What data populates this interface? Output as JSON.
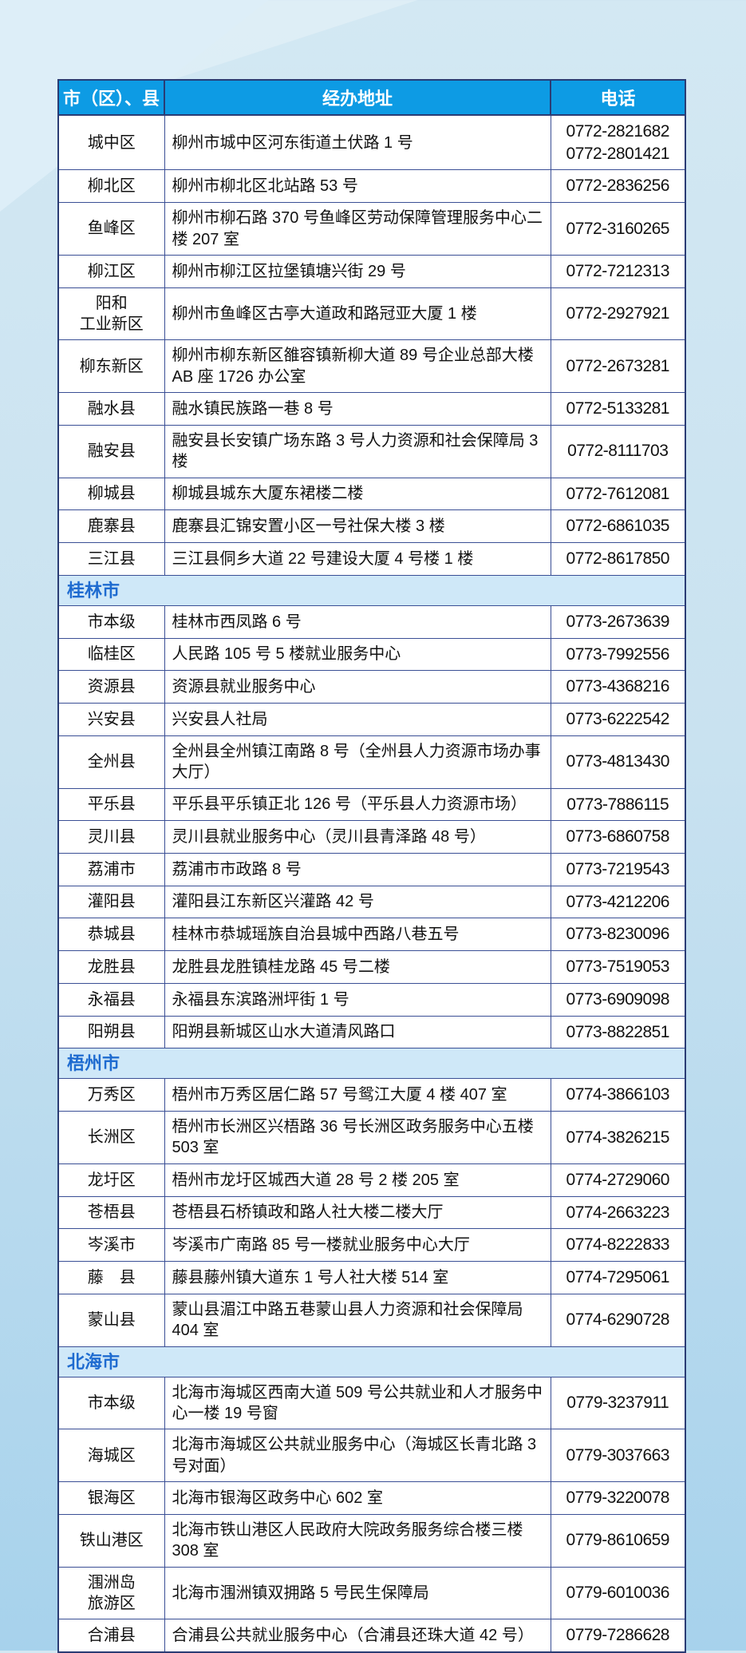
{
  "theme": {
    "bg-top": "#d3e8f3",
    "bg-bottom": "#a7d2ec",
    "header-bg": "#0d9be4",
    "header-text": "#ffffff",
    "section-bg": "#cfe8f8",
    "section-text": "#1e6bd0",
    "border-outer": "#2a3c74",
    "border-inner": "#3a4f95"
  },
  "table": {
    "columns": [
      "市（区）、县",
      "经办地址",
      "电话"
    ],
    "sections": [
      {
        "city": "",
        "rows": [
          {
            "region": "城中区",
            "address": "柳州市城中区河东街道土伏路 1 号",
            "phone": "0772-2821682\n0772-2801421"
          },
          {
            "region": "柳北区",
            "address": "柳州市柳北区北站路 53 号",
            "phone": "0772-2836256"
          },
          {
            "region": "鱼峰区",
            "address": "柳州市柳石路 370 号鱼峰区劳动保障管理服务中心二楼 207 室",
            "phone": "0772-3160265"
          },
          {
            "region": "柳江区",
            "address": "柳州市柳江区拉堡镇塘兴街 29 号",
            "phone": "0772-7212313"
          },
          {
            "region": "阳和\n工业新区",
            "address": "柳州市鱼峰区古亭大道政和路冠亚大厦 1 楼",
            "phone": "0772-2927921"
          },
          {
            "region": "柳东新区",
            "address": "柳州市柳东新区雒容镇新柳大道 89 号企业总部大楼 AB 座 1726 办公室",
            "phone": "0772-2673281"
          },
          {
            "region": "融水县",
            "address": "融水镇民族路一巷 8 号",
            "phone": "0772-5133281"
          },
          {
            "region": "融安县",
            "address": "融安县长安镇广场东路 3 号人力资源和社会保障局 3 楼",
            "phone": "0772-8111703"
          },
          {
            "region": "柳城县",
            "address": "柳城县城东大厦东裙楼二楼",
            "phone": "0772-7612081"
          },
          {
            "region": "鹿寨县",
            "address": "鹿寨县汇锦安置小区一号社保大楼 3 楼",
            "phone": "0772-6861035"
          },
          {
            "region": "三江县",
            "address": "三江县侗乡大道 22 号建设大厦 4 号楼 1 楼",
            "phone": "0772-8617850"
          }
        ]
      },
      {
        "city": "桂林市",
        "rows": [
          {
            "region": "市本级",
            "address": "桂林市西凤路 6 号",
            "phone": "0773-2673639"
          },
          {
            "region": "临桂区",
            "address": "人民路 105 号 5 楼就业服务中心",
            "phone": "0773-7992556"
          },
          {
            "region": "资源县",
            "address": "资源县就业服务中心",
            "phone": "0773-4368216"
          },
          {
            "region": "兴安县",
            "address": "兴安县人社局",
            "phone": "0773-6222542"
          },
          {
            "region": "全州县",
            "address": "全州县全州镇江南路 8 号（全州县人力资源市场办事大厅）",
            "phone": "0773-4813430"
          },
          {
            "region": "平乐县",
            "address": "平乐县平乐镇正北 126 号（平乐县人力资源市场）",
            "phone": "0773-7886115"
          },
          {
            "region": "灵川县",
            "address": "灵川县就业服务中心（灵川县青泽路 48 号）",
            "phone": "0773-6860758"
          },
          {
            "region": "荔浦市",
            "address": "荔浦市市政路 8 号",
            "phone": "0773-7219543"
          },
          {
            "region": "灌阳县",
            "address": "灌阳县江东新区兴灌路 42 号",
            "phone": "0773-4212206"
          },
          {
            "region": "恭城县",
            "address": "桂林市恭城瑶族自治县城中西路八巷五号",
            "phone": "0773-8230096"
          },
          {
            "region": "龙胜县",
            "address": "龙胜县龙胜镇桂龙路 45 号二楼",
            "phone": "0773-7519053"
          },
          {
            "region": "永福县",
            "address": "永福县东滨路洲坪街 1 号",
            "phone": "0773-6909098"
          },
          {
            "region": "阳朔县",
            "address": "阳朔县新城区山水大道清风路口",
            "phone": "0773-8822851"
          }
        ]
      },
      {
        "city": "梧州市",
        "rows": [
          {
            "region": "万秀区",
            "address": "梧州市万秀区居仁路 57 号鸳江大厦 4 楼 407 室",
            "phone": "0774-3866103"
          },
          {
            "region": "长洲区",
            "address": "梧州市长洲区兴梧路 36 号长洲区政务服务中心五楼 503 室",
            "phone": "0774-3826215"
          },
          {
            "region": "龙圩区",
            "address": "梧州市龙圩区城西大道 28 号 2 楼 205 室",
            "phone": "0774-2729060"
          },
          {
            "region": "苍梧县",
            "address": "苍梧县石桥镇政和路人社大楼二楼大厅",
            "phone": "0774-2663223"
          },
          {
            "region": "岑溪市",
            "address": "岑溪市广南路 85 号一楼就业服务中心大厅",
            "phone": "0774-8222833"
          },
          {
            "region": "藤　县",
            "address": "藤县藤州镇大道东 1 号人社大楼 514 室",
            "phone": "0774-7295061"
          },
          {
            "region": "蒙山县",
            "address": "蒙山县湄江中路五巷蒙山县人力资源和社会保障局 404 室",
            "phone": "0774-6290728"
          }
        ]
      },
      {
        "city": "北海市",
        "rows": [
          {
            "region": "市本级",
            "address": "北海市海城区西南大道 509 号公共就业和人才服务中心一楼 19 号窗",
            "phone": "0779-3237911"
          },
          {
            "region": "海城区",
            "address": "北海市海城区公共就业服务中心（海城区长青北路 3 号对面）",
            "phone": "0779-3037663"
          },
          {
            "region": "银海区",
            "address": "北海市银海区政务中心 602 室",
            "phone": "0779-3220078"
          },
          {
            "region": "铁山港区",
            "address": "北海市铁山港区人民政府大院政务服务综合楼三楼 308 室",
            "phone": "0779-8610659"
          },
          {
            "region": "涠洲岛\n旅游区",
            "address": "北海市涠洲镇双拥路 5 号民生保障局",
            "phone": "0779-6010036"
          },
          {
            "region": "合浦县",
            "address": "合浦县公共就业服务中心（合浦县还珠大道 42 号）",
            "phone": "0779-7286628"
          }
        ]
      }
    ]
  }
}
